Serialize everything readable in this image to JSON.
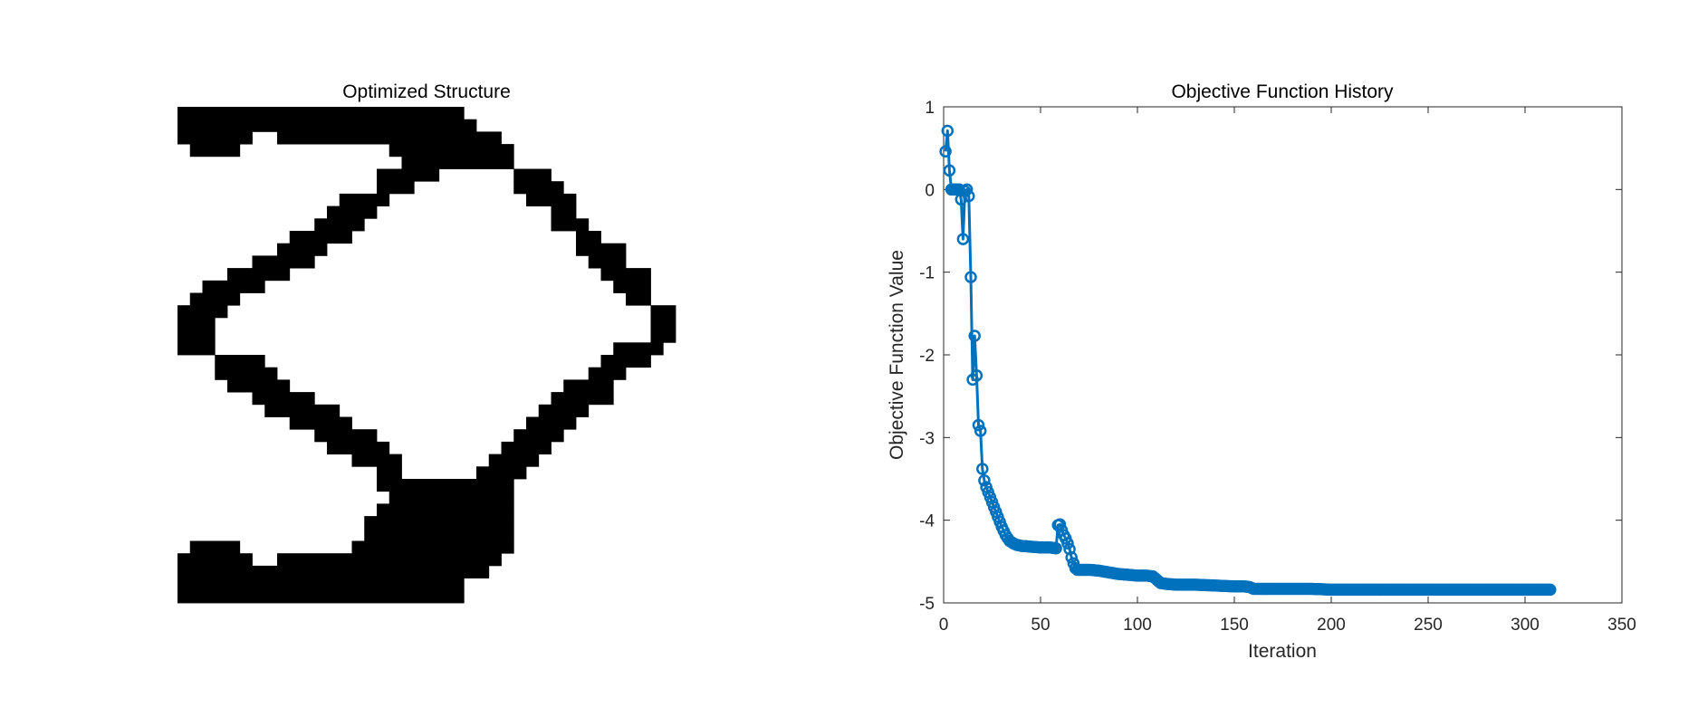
{
  "figure": {
    "background": "#ffffff"
  },
  "chart_data": [
    {
      "type": "heatmap",
      "title": "Optimized Structure",
      "colormap": [
        "#ffffff",
        "#000000"
      ],
      "axes_visible": false,
      "grid_cols": 40,
      "grid_rows": 40,
      "dark_cells_by_row": [
        [
          [
            0,
            22
          ]
        ],
        [
          [
            0,
            23
          ]
        ],
        [
          [
            0,
            5
          ],
          [
            8,
            25
          ]
        ],
        [
          [
            1,
            4
          ],
          [
            17,
            26
          ]
        ],
        [
          [
            18,
            26
          ]
        ],
        [
          [
            16,
            20
          ],
          [
            27,
            29
          ]
        ],
        [
          [
            16,
            18
          ],
          [
            27,
            30
          ]
        ],
        [
          [
            13,
            16
          ],
          [
            28,
            31
          ]
        ],
        [
          [
            12,
            15
          ],
          [
            30,
            31
          ]
        ],
        [
          [
            11,
            14
          ],
          [
            30,
            32
          ]
        ],
        [
          [
            9,
            13
          ],
          [
            32,
            33
          ]
        ],
        [
          [
            8,
            11
          ],
          [
            32,
            35
          ]
        ],
        [
          [
            6,
            10
          ],
          [
            33,
            35
          ]
        ],
        [
          [
            4,
            8
          ],
          [
            34,
            37
          ]
        ],
        [
          [
            2,
            6
          ],
          [
            35,
            37
          ]
        ],
        [
          [
            1,
            4
          ],
          [
            36,
            37
          ]
        ],
        [
          [
            0,
            3
          ],
          [
            38,
            39
          ]
        ],
        [
          [
            0,
            2
          ],
          [
            38,
            39
          ]
        ],
        [
          [
            0,
            2
          ],
          [
            38,
            39
          ]
        ],
        [
          [
            0,
            2
          ],
          [
            35,
            38
          ]
        ],
        [
          [
            3,
            6
          ],
          [
            34,
            37
          ]
        ],
        [
          [
            3,
            7
          ],
          [
            33,
            35
          ]
        ],
        [
          [
            4,
            8
          ],
          [
            31,
            34
          ]
        ],
        [
          [
            6,
            10
          ],
          [
            30,
            34
          ]
        ],
        [
          [
            7,
            12
          ],
          [
            29,
            32
          ]
        ],
        [
          [
            9,
            13
          ],
          [
            28,
            31
          ]
        ],
        [
          [
            11,
            15
          ],
          [
            27,
            30
          ]
        ],
        [
          [
            12,
            16
          ],
          [
            26,
            29
          ]
        ],
        [
          [
            14,
            17
          ],
          [
            25,
            28
          ]
        ],
        [
          [
            16,
            17
          ],
          [
            24,
            27
          ]
        ],
        [
          [
            16,
            26
          ]
        ],
        [
          [
            17,
            26
          ]
        ],
        [
          [
            16,
            26
          ]
        ],
        [
          [
            15,
            26
          ]
        ],
        [
          [
            15,
            26
          ]
        ],
        [
          [
            1,
            4
          ],
          [
            14,
            26
          ]
        ],
        [
          [
            0,
            5
          ],
          [
            8,
            25
          ]
        ],
        [
          [
            0,
            7
          ],
          [
            8,
            24
          ]
        ],
        [
          [
            0,
            22
          ]
        ],
        [
          [
            0,
            22
          ]
        ]
      ]
    },
    {
      "type": "line",
      "title": "Objective Function History",
      "xlabel": "Iteration",
      "ylabel": "Objective Function Value",
      "xlim": [
        0,
        350
      ],
      "ylim": [
        -5,
        1
      ],
      "xticks": [
        "0",
        "50",
        "100",
        "150",
        "200",
        "250",
        "300",
        "350"
      ],
      "yticks": [
        "1",
        "0",
        "-1",
        "-2",
        "-3",
        "-4",
        "-5"
      ],
      "grid": false,
      "box": true,
      "marker": "circle",
      "color": "#0072BD",
      "series": [
        {
          "x": [
            1,
            2,
            3,
            4,
            5,
            6,
            7,
            8,
            9,
            10,
            11,
            12,
            13,
            14,
            15,
            16,
            17,
            18,
            19,
            20,
            21,
            22,
            24,
            26,
            28,
            30,
            32,
            34,
            36,
            38,
            40,
            45,
            50,
            55,
            58,
            59,
            60,
            61,
            62,
            63,
            64,
            65,
            66,
            67,
            68,
            69,
            70,
            75,
            80,
            85,
            90,
            95,
            100,
            105,
            108,
            110,
            112,
            115,
            120,
            130,
            140,
            150,
            155,
            158,
            160,
            170,
            180,
            190,
            200,
            210,
            220,
            230,
            240,
            250,
            260,
            270,
            280,
            290,
            300,
            310,
            313
          ],
          "y": [
            0.46,
            0.71,
            0.23,
            0.0,
            0.0,
            0.0,
            0.0,
            0.0,
            -0.12,
            -0.6,
            -0.02,
            0.0,
            -0.08,
            -1.06,
            -2.3,
            -1.77,
            -2.25,
            -2.85,
            -2.92,
            -3.38,
            -3.52,
            -3.6,
            -3.72,
            -3.84,
            -3.96,
            -4.08,
            -4.18,
            -4.25,
            -4.28,
            -4.3,
            -4.31,
            -4.32,
            -4.33,
            -4.33,
            -4.34,
            -4.06,
            -4.05,
            -4.12,
            -4.18,
            -4.22,
            -4.28,
            -4.35,
            -4.45,
            -4.52,
            -4.58,
            -4.6,
            -4.6,
            -4.6,
            -4.61,
            -4.63,
            -4.65,
            -4.66,
            -4.67,
            -4.67,
            -4.68,
            -4.72,
            -4.76,
            -4.77,
            -4.78,
            -4.78,
            -4.79,
            -4.8,
            -4.8,
            -4.81,
            -4.83,
            -4.83,
            -4.83,
            -4.83,
            -4.84,
            -4.84,
            -4.84,
            -4.84,
            -4.84,
            -4.84,
            -4.84,
            -4.84,
            -4.84,
            -4.84,
            -4.84,
            -4.84,
            -4.84
          ]
        }
      ]
    }
  ]
}
